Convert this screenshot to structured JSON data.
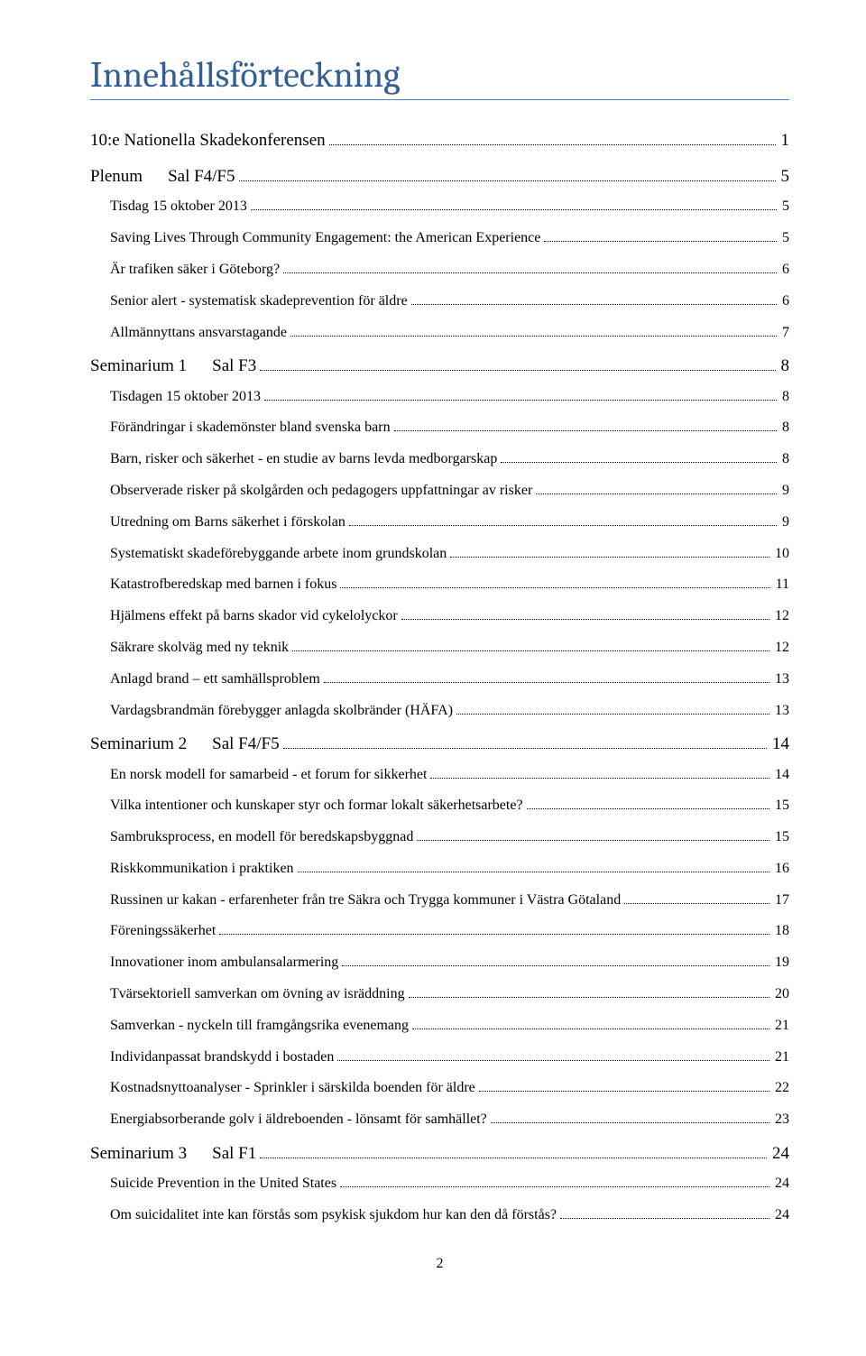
{
  "title": "Innehållsförteckning",
  "page_number": "2",
  "colors": {
    "heading": "#365f91",
    "heading_rule": "#4f81bd",
    "text": "#000000",
    "background": "#ffffff"
  },
  "typography": {
    "heading_font": "Cambria",
    "body_font": "Times New Roman",
    "heading_size_pt": 30,
    "level0_size_pt": 14,
    "level1_size_pt": 12
  },
  "entries": [
    {
      "level": 0,
      "label": "10:e Nationella Skadekonferensen",
      "page": "1"
    },
    {
      "level": 0,
      "label": "Plenum",
      "room": "Sal F4/F5",
      "page": "5"
    },
    {
      "level": 1,
      "label": "Tisdag 15 oktober 2013",
      "page": "5"
    },
    {
      "level": 1,
      "label": "Saving Lives Through Community Engagement: the American Experience",
      "page": "5"
    },
    {
      "level": 1,
      "label": "Är trafiken säker i Göteborg?",
      "page": "6"
    },
    {
      "level": 1,
      "label": "Senior alert - systematisk skadeprevention för äldre",
      "page": "6"
    },
    {
      "level": 1,
      "label": "Allmännyttans ansvarstagande",
      "page": "7"
    },
    {
      "level": 0,
      "label": "Seminarium 1",
      "room": "Sal F3",
      "page": "8"
    },
    {
      "level": 1,
      "label": "Tisdagen 15 oktober 2013",
      "page": "8"
    },
    {
      "level": 1,
      "label": "Förändringar i skademönster bland svenska barn",
      "page": "8"
    },
    {
      "level": 1,
      "label": "Barn, risker och säkerhet - en studie av barns levda medborgarskap",
      "page": "8"
    },
    {
      "level": 1,
      "label": "Observerade risker på skolgården och pedagogers uppfattningar av risker",
      "page": "9"
    },
    {
      "level": 1,
      "label": "Utredning om Barns säkerhet i förskolan",
      "page": "9"
    },
    {
      "level": 1,
      "label": "Systematiskt skadeförebyggande arbete inom grundskolan",
      "page": "10"
    },
    {
      "level": 1,
      "label": "Katastrofberedskap med barnen i fokus",
      "page": "11"
    },
    {
      "level": 1,
      "label": "Hjälmens effekt på barns skador vid cykelolyckor",
      "page": "12"
    },
    {
      "level": 1,
      "label": "Säkrare skolväg med ny teknik",
      "page": "12"
    },
    {
      "level": 1,
      "label": "Anlagd brand – ett samhällsproblem",
      "page": "13"
    },
    {
      "level": 1,
      "label": "Vardagsbrandmän förebygger anlagda skolbränder (HÄFA)",
      "page": "13"
    },
    {
      "level": 0,
      "label": "Seminarium 2",
      "room": "Sal F4/F5",
      "page": "14"
    },
    {
      "level": 1,
      "label": "En norsk modell for samarbeid - et forum for sikkerhet",
      "page": "14"
    },
    {
      "level": 1,
      "label": "Vilka intentioner och kunskaper styr och formar lokalt säkerhetsarbete?",
      "page": "15"
    },
    {
      "level": 1,
      "label": "Sambruksprocess, en modell för beredskapsbyggnad",
      "page": "15"
    },
    {
      "level": 1,
      "label": "Riskkommunikation i praktiken",
      "page": "16"
    },
    {
      "level": 1,
      "label": "Russinen ur kakan - erfarenheter från tre Säkra och Trygga kommuner i Västra Götaland",
      "page": "17"
    },
    {
      "level": 1,
      "label": "Föreningssäkerhet",
      "page": "18"
    },
    {
      "level": 1,
      "label": "Innovationer inom ambulansalarmering",
      "page": "19"
    },
    {
      "level": 1,
      "label": "Tvärsektoriell samverkan om övning av isräddning",
      "page": "20"
    },
    {
      "level": 1,
      "label": "Samverkan - nyckeln till framgångsrika evenemang",
      "page": "21"
    },
    {
      "level": 1,
      "label": "Individanpassat brandskydd i bostaden",
      "page": "21"
    },
    {
      "level": 1,
      "label": "Kostnadsnyttoanalyser - Sprinkler i särskilda boenden för äldre",
      "page": "22"
    },
    {
      "level": 1,
      "label": "Energiabsorberande golv i äldreboenden - lönsamt för samhället?",
      "page": "23"
    },
    {
      "level": 0,
      "label": "Seminarium 3",
      "room": "Sal F1",
      "page": "24"
    },
    {
      "level": 1,
      "label": "Suicide Prevention in the United States",
      "page": "24"
    },
    {
      "level": 1,
      "label": "Om suicidalitet inte kan förstås som psykisk sjukdom hur kan den då förstås?",
      "page": "24"
    }
  ]
}
